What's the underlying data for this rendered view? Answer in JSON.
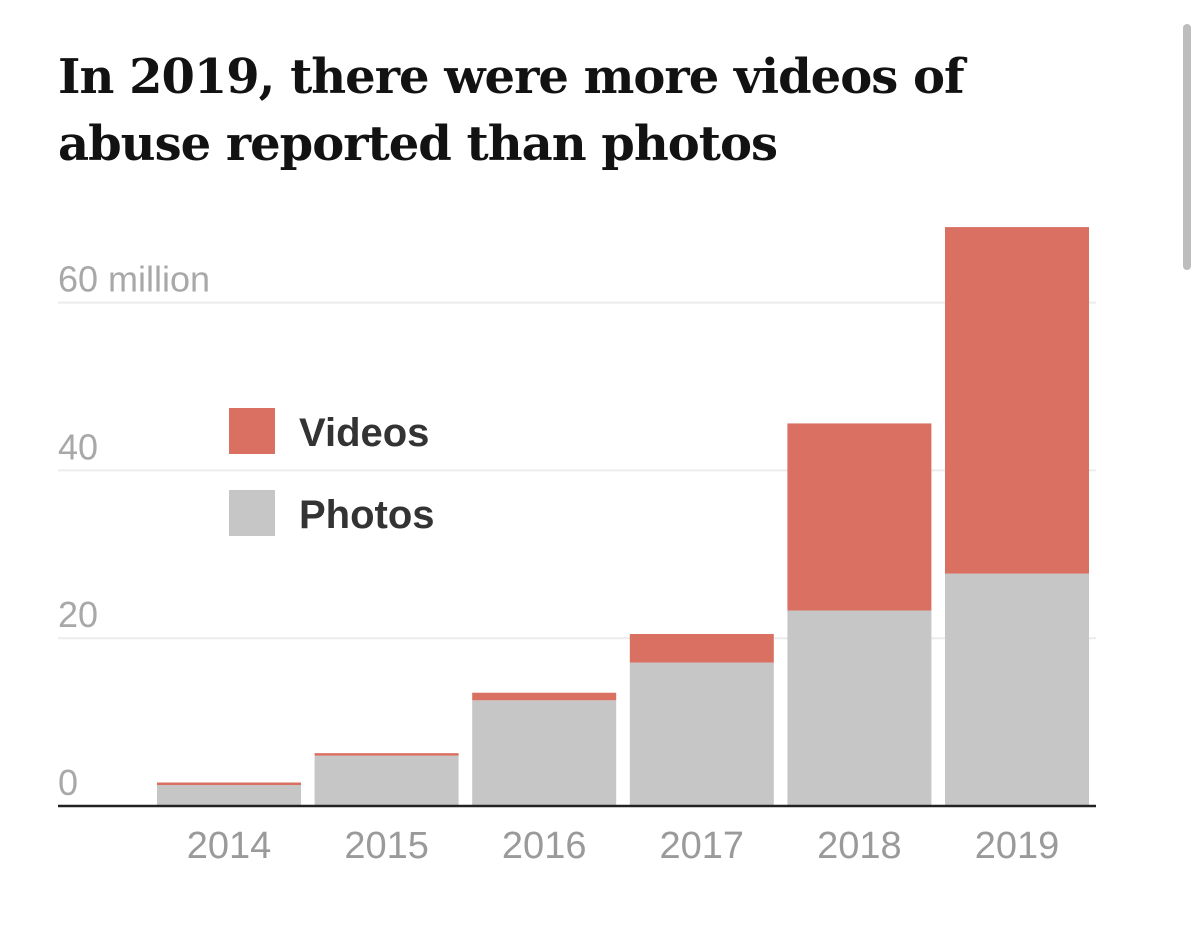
{
  "chart_data": {
    "type": "bar",
    "stacked": true,
    "title": "In 2019, there were more videos of abuse reported than photos",
    "categories": [
      "2014",
      "2015",
      "2016",
      "2017",
      "2018",
      "2019"
    ],
    "series": [
      {
        "name": "Photos",
        "color": "#c6c6c6",
        "values": [
          2.5,
          6.0,
          12.6,
          17.1,
          23.3,
          27.7
        ]
      },
      {
        "name": "Videos",
        "color": "#d97062",
        "values": [
          0.3,
          0.3,
          0.9,
          3.4,
          22.3,
          41.3
        ]
      }
    ],
    "yticks": [
      {
        "value": 0,
        "label": "0"
      },
      {
        "value": 20,
        "label": "20"
      },
      {
        "value": 40,
        "label": "40"
      },
      {
        "value": 60,
        "label": "60 million"
      }
    ],
    "ylim": [
      0,
      70
    ],
    "grid": true,
    "legend": {
      "placement": "top-left",
      "order": [
        "Videos",
        "Photos"
      ]
    }
  }
}
